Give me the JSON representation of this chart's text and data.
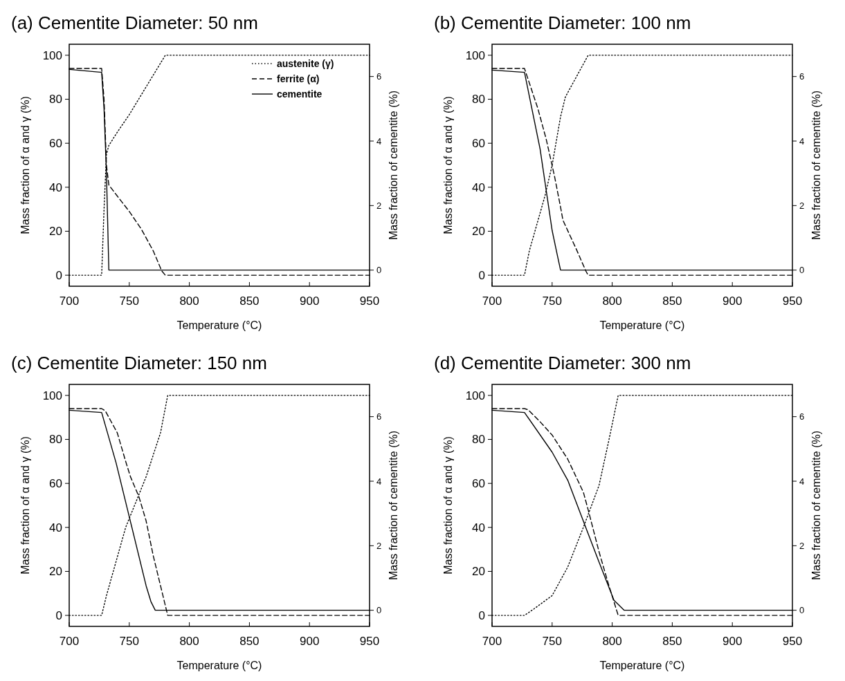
{
  "chart_data": [
    {
      "type": "line",
      "title": "(a) Cementite Diameter: 50 nm",
      "xlabel": "Temperature (°C)",
      "ylabel": "Mass fraction of α and γ (%)",
      "y2label": "Mass fraction of cementite (%)",
      "xlim": [
        700,
        950
      ],
      "xticks": [
        700,
        750,
        800,
        850,
        900,
        950
      ],
      "ylim": [
        -5,
        105
      ],
      "yticks": [
        0,
        20,
        40,
        60,
        80,
        100
      ],
      "y2lim": [
        -0.5,
        7
      ],
      "y2ticks": [
        0,
        2,
        4,
        6
      ],
      "grid": false,
      "legend": "top right",
      "marker": "none",
      "series": [
        {
          "name": "austenite (γ)",
          "color": "#000000",
          "line_style": "dotted",
          "x": [
            700,
            727,
            729,
            731,
            733,
            740,
            750,
            760,
            770,
            780,
            950
          ],
          "values": [
            0,
            0,
            30,
            55,
            59,
            65,
            73,
            82,
            91,
            100,
            100
          ]
        },
        {
          "name": "ferrite (α)",
          "color": "#000000",
          "line_style": "dashed",
          "x": [
            700,
            727,
            729,
            731,
            733,
            740,
            750,
            760,
            770,
            777,
            780,
            950
          ],
          "values": [
            94,
            94,
            80,
            50,
            41,
            36,
            29,
            21,
            11,
            2,
            0,
            0
          ]
        },
        {
          "name": "cementite",
          "color": "#000000",
          "line_style": "solid",
          "axis": "y2",
          "x": [
            700,
            727,
            729,
            731,
            733,
            950
          ],
          "values": [
            6.22,
            6.13,
            5,
            3,
            0,
            0
          ]
        }
      ]
    },
    {
      "type": "line",
      "title": "(b) Cementite Diameter: 100 nm",
      "xlabel": "Temperature (°C)",
      "ylabel": "Mass fraction of α and γ (%)",
      "y2label": "Mass fraction of cementite (%)",
      "xlim": [
        700,
        950
      ],
      "xticks": [
        700,
        750,
        800,
        850,
        900,
        950
      ],
      "ylim": [
        -5,
        105
      ],
      "yticks": [
        0,
        20,
        40,
        60,
        80,
        100
      ],
      "y2lim": [
        -0.5,
        7
      ],
      "y2ticks": [
        0,
        2,
        4,
        6
      ],
      "grid": false,
      "legend": false,
      "marker": "none",
      "series": [
        {
          "color": "#000000",
          "line_style": "dotted",
          "x": [
            700,
            727,
            731,
            744,
            750,
            757,
            761,
            770,
            780,
            950
          ],
          "values": [
            0,
            0,
            11,
            36,
            50,
            72,
            81,
            90,
            100,
            100
          ]
        },
        {
          "color": "#000000",
          "line_style": "dashed",
          "x": [
            700,
            727,
            738,
            745,
            752,
            757,
            759,
            770,
            778,
            780,
            950
          ],
          "values": [
            94,
            94,
            76,
            62,
            45,
            31,
            25,
            12,
            2,
            0,
            0
          ]
        },
        {
          "color": "#000000",
          "line_style": "solid",
          "axis": "y2",
          "x": [
            700,
            727,
            740,
            750,
            754,
            757,
            950
          ],
          "values": [
            6.2,
            6.13,
            3.75,
            1.23,
            0.52,
            0,
            0
          ]
        }
      ]
    },
    {
      "type": "line",
      "title": "(c) Cementite Diameter: 150 nm",
      "xlabel": "Temperature (°C)",
      "ylabel": "Mass fraction of α and γ (%)",
      "y2label": "Mass fraction of cementite (%)",
      "xlim": [
        700,
        950
      ],
      "xticks": [
        700,
        750,
        800,
        850,
        900,
        950
      ],
      "ylim": [
        -5,
        105
      ],
      "yticks": [
        0,
        20,
        40,
        60,
        80,
        100
      ],
      "y2lim": [
        -0.5,
        7
      ],
      "y2ticks": [
        0,
        2,
        4,
        6
      ],
      "grid": false,
      "legend": false,
      "marker": "none",
      "series": [
        {
          "color": "#000000",
          "line_style": "dotted",
          "x": [
            700,
            727,
            731,
            747,
            764,
            776,
            782,
            950
          ],
          "values": [
            0,
            0,
            9,
            40,
            63,
            83,
            100,
            100
          ]
        },
        {
          "color": "#000000",
          "line_style": "dashed",
          "x": [
            700,
            727,
            730,
            740,
            747,
            751,
            758,
            764,
            770,
            776,
            782,
            950
          ],
          "values": [
            94,
            94,
            93,
            83,
            70,
            63,
            54,
            43,
            27,
            13.5,
            0,
            0
          ]
        },
        {
          "color": "#000000",
          "line_style": "solid",
          "axis": "y2",
          "x": [
            700,
            727,
            739,
            751.5,
            764,
            768,
            771.6,
            950
          ],
          "values": [
            6.2,
            6.13,
            4.57,
            2.67,
            0.76,
            0.27,
            0,
            0
          ]
        }
      ]
    },
    {
      "type": "line",
      "title": "(d) Cementite Diameter: 300 nm",
      "xlabel": "Temperature (°C)",
      "ylabel": "Mass fraction of α and γ (%)",
      "y2label": "Mass fraction of cementite (%)",
      "xlim": [
        700,
        950
      ],
      "xticks": [
        700,
        750,
        800,
        850,
        900,
        950
      ],
      "ylim": [
        -5,
        105
      ],
      "yticks": [
        0,
        20,
        40,
        60,
        80,
        100
      ],
      "y2lim": [
        -0.5,
        7
      ],
      "y2ticks": [
        0,
        2,
        4,
        6
      ],
      "grid": false,
      "legend": false,
      "marker": "none",
      "series": [
        {
          "color": "#000000",
          "line_style": "dotted",
          "x": [
            700,
            727,
            735,
            750,
            763,
            776,
            789,
            797,
            805,
            950
          ],
          "values": [
            0,
            0,
            3,
            9,
            22,
            40,
            59,
            79,
            100,
            100
          ]
        },
        {
          "color": "#000000",
          "line_style": "dashed",
          "x": [
            700,
            727,
            730,
            740,
            750,
            763,
            776,
            780,
            789,
            797,
            805,
            950
          ],
          "values": [
            94,
            94,
            93.5,
            88,
            82,
            71,
            56,
            48,
            29,
            14,
            0,
            0
          ]
        },
        {
          "color": "#000000",
          "line_style": "solid",
          "axis": "y2",
          "x": [
            700,
            727,
            750,
            763,
            776,
            789,
            801.5,
            810,
            950
          ],
          "values": [
            6.2,
            6.13,
            4.9,
            4.03,
            2.76,
            1.5,
            0.31,
            0,
            0
          ]
        }
      ]
    }
  ]
}
